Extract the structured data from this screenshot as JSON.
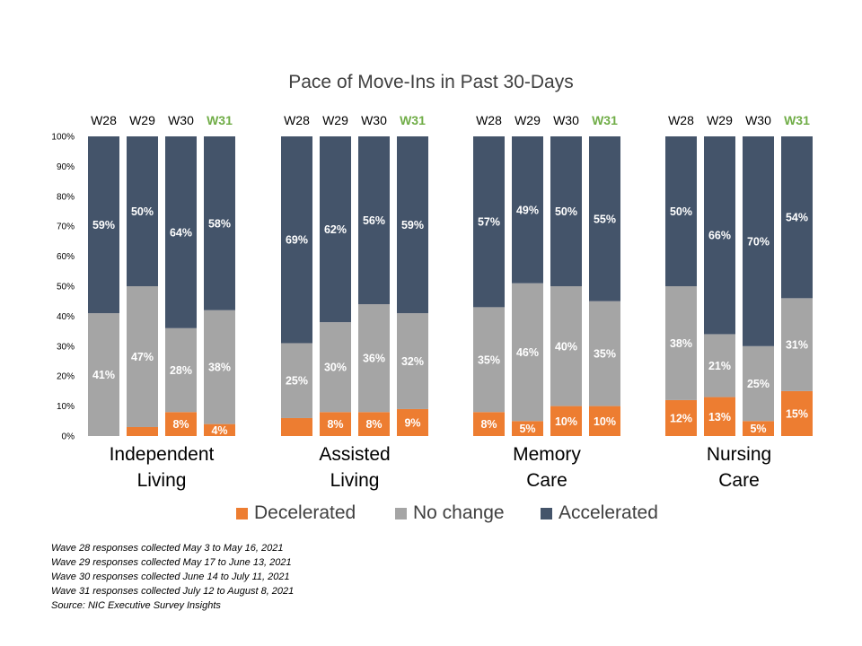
{
  "chart_data": {
    "type": "bar",
    "stacked": true,
    "percent_stacked": true,
    "title": "Pace of Move-Ins in Past 30-Days",
    "y_ticks": [
      "0%",
      "10%",
      "20%",
      "30%",
      "40%",
      "50%",
      "60%",
      "70%",
      "80%",
      "90%",
      "100%"
    ],
    "ylim": [
      0,
      100
    ],
    "highlight_wave": "W31",
    "highlight_color": "#70AD47",
    "groups": [
      {
        "label_lines": [
          "Independent",
          "Living"
        ],
        "waves": [
          "W28",
          "W29",
          "W30",
          "W31"
        ],
        "decelerated": [
          0,
          3,
          8,
          4
        ],
        "no_change": [
          41,
          47,
          28,
          38
        ],
        "accelerated": [
          59,
          50,
          64,
          58
        ],
        "labels": {
          "decelerated": [
            "",
            "",
            "8%",
            "4%"
          ],
          "no_change": [
            "41%",
            "47%",
            "28%",
            "38%"
          ],
          "accelerated": [
            "59%",
            "50%",
            "64%",
            "58%"
          ]
        }
      },
      {
        "label_lines": [
          "Assisted",
          "Living"
        ],
        "waves": [
          "W28",
          "W29",
          "W30",
          "W31"
        ],
        "decelerated": [
          6,
          8,
          8,
          9
        ],
        "no_change": [
          25,
          30,
          36,
          32
        ],
        "accelerated": [
          69,
          62,
          56,
          59
        ],
        "labels": {
          "decelerated": [
            "",
            "8%",
            "8%",
            "9%"
          ],
          "no_change": [
            "25%",
            "30%",
            "36%",
            "32%"
          ],
          "accelerated": [
            "69%",
            "62%",
            "56%",
            "59%"
          ]
        }
      },
      {
        "label_lines": [
          "Memory",
          "Care"
        ],
        "waves": [
          "W28",
          "W29",
          "W30",
          "W31"
        ],
        "decelerated": [
          8,
          5,
          10,
          10
        ],
        "no_change": [
          35,
          46,
          40,
          35
        ],
        "accelerated": [
          57,
          49,
          50,
          55
        ],
        "labels": {
          "decelerated": [
            "8%",
            "5%",
            "10%",
            "10%"
          ],
          "no_change": [
            "35%",
            "46%",
            "40%",
            "35%"
          ],
          "accelerated": [
            "57%",
            "49%",
            "50%",
            "55%"
          ]
        }
      },
      {
        "label_lines": [
          "Nursing",
          "Care"
        ],
        "waves": [
          "W28",
          "W29",
          "W30",
          "W31"
        ],
        "decelerated": [
          12,
          13,
          5,
          15
        ],
        "no_change": [
          38,
          21,
          25,
          31
        ],
        "accelerated": [
          50,
          66,
          70,
          54
        ],
        "labels": {
          "decelerated": [
            "12%",
            "13%",
            "5%",
            "15%"
          ],
          "no_change": [
            "38%",
            "21%",
            "25%",
            "31%"
          ],
          "accelerated": [
            "50%",
            "66%",
            "70%",
            "54%"
          ]
        }
      }
    ],
    "series": [
      {
        "name": "Decelerated",
        "key": "decelerated",
        "color": "#ED7D31"
      },
      {
        "name": "No change",
        "key": "no_change",
        "color": "#A5A5A5"
      },
      {
        "name": "Accelerated",
        "key": "accelerated",
        "color": "#44546A"
      }
    ],
    "legend_position": "bottom"
  },
  "notes": [
    "Wave 28 responses collected May 3 to May 16, 2021",
    "Wave 29 responses collected May 17 to June 13, 2021",
    "Wave 30 responses collected June 14 to July 11, 2021",
    "Wave 31 responses collected July 12 to August 8, 2021",
    "Source: NIC Executive Survey Insights"
  ]
}
